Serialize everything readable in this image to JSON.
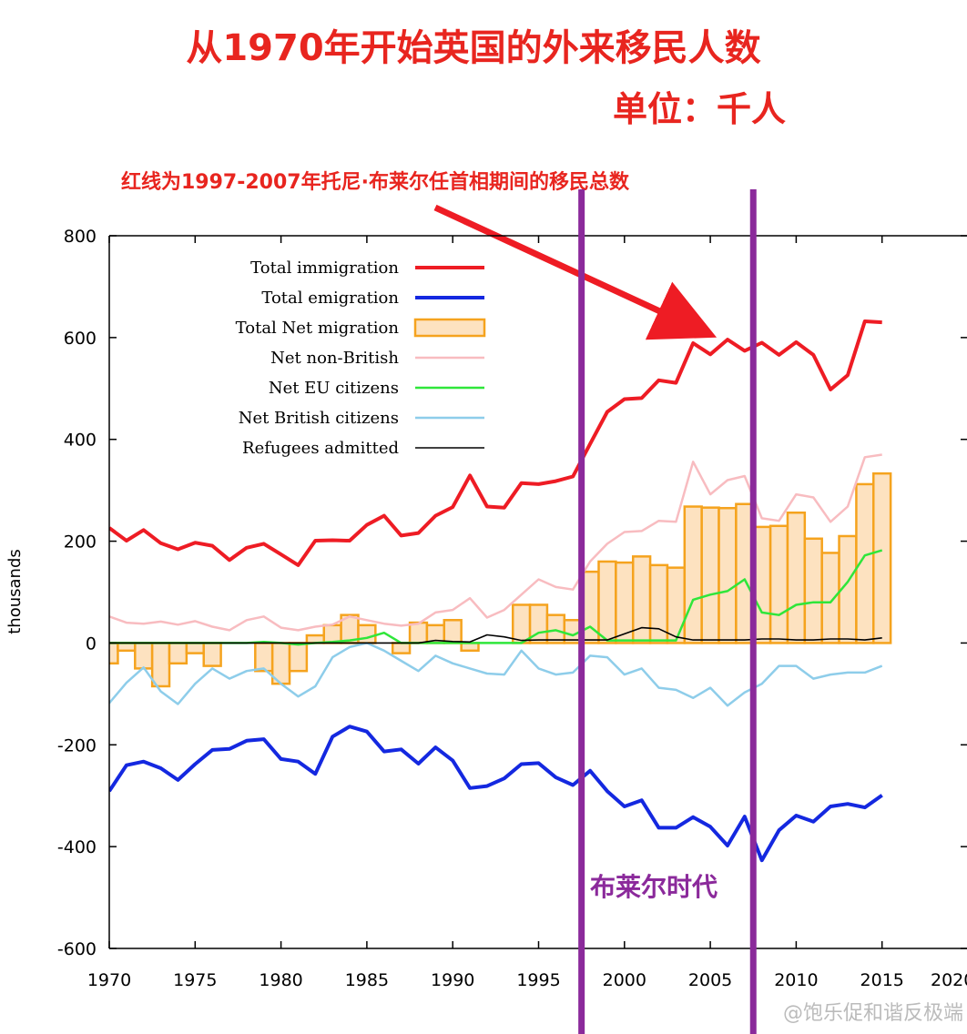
{
  "header": {
    "title": "从1970年开始英国的外来移民人数",
    "unit": "单位：千人",
    "annotation": "红线为1997-2007年托尼·布莱尔任首相期间的移民总数"
  },
  "era_label": "布莱尔时代",
  "watermark": "@饱乐促和谐反极端",
  "colors": {
    "title": "#e8251f",
    "immigration": "#ee1c24",
    "emigration": "#1428e0",
    "net_fill": "#fde2c0",
    "net_stroke": "#f5a31e",
    "net_non_british": "#f8bcc0",
    "net_eu": "#2fe63a",
    "net_british": "#8ecdea",
    "refugees": "#000000",
    "era_lines": "#8b2a9b"
  },
  "chart_data": {
    "type": "line",
    "title": "从1970年开始英国的外来移民人数",
    "xlabel": "",
    "ylabel": "thousands",
    "xlim": [
      1970,
      2020
    ],
    "ylim": [
      -600,
      800
    ],
    "xticks": [
      1970,
      1975,
      1980,
      1985,
      1990,
      1995,
      2000,
      2005,
      2010,
      2015,
      2020
    ],
    "xtick_labels": [
      "1970",
      "1975",
      "1980",
      "1985",
      "1990",
      "1995",
      "2000",
      "2005",
      "2010",
      "2015",
      "2020"
    ],
    "yticks": [
      -600,
      -400,
      -200,
      0,
      200,
      400,
      600,
      800
    ],
    "ytick_labels": [
      "-600",
      "-400",
      "-200",
      "0",
      "200",
      "400",
      "600",
      "800"
    ],
    "legend_position": "top-left",
    "highlight_years": [
      1997.5,
      2007.5
    ],
    "x": [
      1970,
      1971,
      1972,
      1973,
      1974,
      1975,
      1976,
      1977,
      1978,
      1979,
      1980,
      1981,
      1982,
      1983,
      1984,
      1985,
      1986,
      1987,
      1988,
      1989,
      1990,
      1991,
      1992,
      1993,
      1994,
      1995,
      1996,
      1997,
      1998,
      1999,
      2000,
      2001,
      2002,
      2003,
      2004,
      2005,
      2006,
      2007,
      2008,
      2009,
      2010,
      2011,
      2012,
      2013,
      2014,
      2015
    ],
    "series": [
      {
        "name": "Total immigration",
        "kind": "line",
        "color_key": "immigration",
        "values": [
          226,
          201,
          222,
          196,
          184,
          197,
          191,
          163,
          187,
          195,
          174,
          153,
          201,
          202,
          201,
          232,
          250,
          211,
          216,
          250,
          267,
          329,
          268,
          266,
          314,
          312,
          318,
          327,
          391,
          454,
          479,
          481,
          516,
          511,
          589,
          567,
          596,
          574,
          590,
          566,
          591,
          566,
          498,
          526,
          632,
          630
        ]
      },
      {
        "name": "Total emigration",
        "kind": "line",
        "color_key": "emigration",
        "values": [
          -291,
          -240,
          -233,
          -246,
          -269,
          -238,
          -210,
          -208,
          -192,
          -189,
          -228,
          -233,
          -257,
          -184,
          -164,
          -174,
          -213,
          -209,
          -237,
          -205,
          -231,
          -285,
          -281,
          -266,
          -238,
          -236,
          -264,
          -279,
          -251,
          -291,
          -321,
          -309,
          -363,
          -363,
          -342,
          -361,
          -398,
          -341,
          -427,
          -368,
          -339,
          -351,
          -321,
          -316,
          -323,
          -299
        ]
      },
      {
        "name": "Total Net migration",
        "kind": "bar",
        "color_key": "net_fill",
        "values": [
          -40,
          -15,
          -50,
          -85,
          -40,
          -20,
          -45,
          0,
          0,
          -55,
          -80,
          -55,
          15,
          35,
          55,
          35,
          0,
          -20,
          40,
          35,
          45,
          -15,
          0,
          0,
          75,
          75,
          55,
          45,
          140,
          160,
          158,
          170,
          153,
          148,
          268,
          266,
          265,
          273,
          228,
          230,
          256,
          205,
          177,
          210,
          312,
          333
        ]
      },
      {
        "name": "Net non-British",
        "kind": "line",
        "color_key": "net_non_british",
        "values": [
          52,
          40,
          38,
          42,
          36,
          43,
          32,
          25,
          45,
          52,
          30,
          25,
          32,
          36,
          52,
          45,
          38,
          34,
          38,
          60,
          65,
          88,
          50,
          65,
          95,
          125,
          110,
          105,
          160,
          195,
          218,
          220,
          240,
          238,
          356,
          292,
          320,
          328,
          245,
          240,
          292,
          286,
          238,
          268,
          365,
          370
        ]
      },
      {
        "name": "Net EU citizens",
        "kind": "line",
        "color_key": "net_eu",
        "values": [
          0,
          0,
          0,
          0,
          0,
          0,
          0,
          0,
          0,
          2,
          0,
          -3,
          0,
          2,
          5,
          10,
          20,
          0,
          0,
          0,
          0,
          0,
          0,
          0,
          0,
          20,
          25,
          15,
          32,
          5,
          5,
          5,
          5,
          5,
          85,
          95,
          102,
          125,
          60,
          55,
          75,
          80,
          80,
          120,
          172,
          182
        ]
      },
      {
        "name": "Net British citizens",
        "kind": "line",
        "color_key": "net_british",
        "values": [
          -118,
          -78,
          -48,
          -95,
          -120,
          -80,
          -50,
          -70,
          -55,
          -50,
          -80,
          -105,
          -85,
          -28,
          -8,
          0,
          -15,
          -35,
          -55,
          -25,
          -40,
          -50,
          -60,
          -62,
          -15,
          -50,
          -62,
          -58,
          -25,
          -28,
          -62,
          -50,
          -88,
          -92,
          -108,
          -88,
          -123,
          -97,
          -80,
          -45,
          -45,
          -70,
          -62,
          -58,
          -58,
          -45
        ]
      },
      {
        "name": "Refugees admitted",
        "kind": "line",
        "color_key": "refugees",
        "values": [
          0,
          0,
          0,
          0,
          0,
          0,
          0,
          0,
          0,
          0,
          0,
          0,
          0,
          0,
          0,
          0,
          0,
          0,
          0,
          5,
          3,
          2,
          16,
          12,
          5,
          6,
          6,
          6,
          6,
          6,
          18,
          30,
          28,
          12,
          6,
          6,
          6,
          6,
          8,
          8,
          6,
          6,
          8,
          8,
          6,
          10
        ]
      }
    ]
  }
}
